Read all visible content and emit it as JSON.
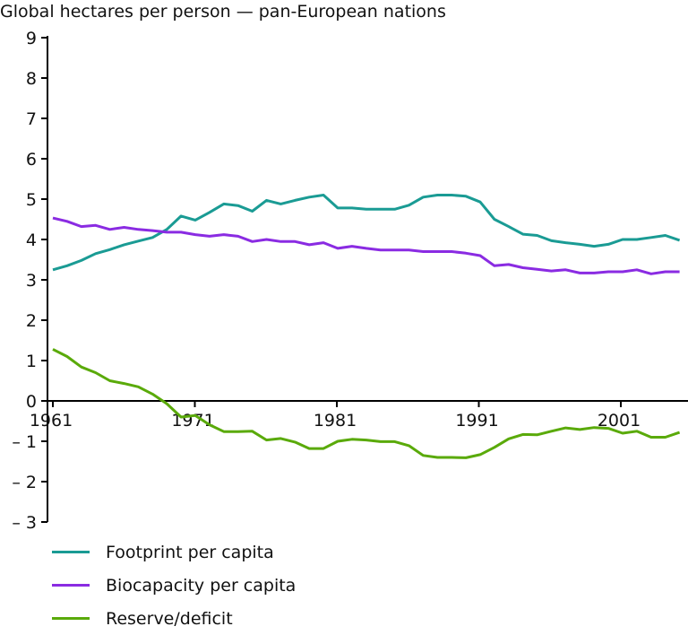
{
  "chart_data": {
    "type": "line",
    "title": "Global hectares per person — pan-European nations",
    "xlabel": "",
    "ylabel": "",
    "ylim": [
      -3,
      9
    ],
    "yticks": [
      "9",
      "8",
      "7",
      "6",
      "5",
      "4",
      "3",
      "2",
      "1",
      "0",
      "– 1",
      "– 2",
      "– 3"
    ],
    "ytick_values": [
      9,
      8,
      7,
      6,
      5,
      4,
      3,
      2,
      1,
      0,
      -1,
      -2,
      -3
    ],
    "xticks": [
      "1961",
      "1971",
      "1981",
      "1991",
      "2001"
    ],
    "xtick_values": [
      1961,
      1971,
      1981,
      1991,
      2001
    ],
    "x": [
      1961,
      1962,
      1963,
      1964,
      1965,
      1966,
      1967,
      1968,
      1969,
      1970,
      1971,
      1972,
      1973,
      1974,
      1975,
      1976,
      1977,
      1978,
      1979,
      1980,
      1981,
      1982,
      1983,
      1984,
      1985,
      1986,
      1987,
      1988,
      1989,
      1990,
      1991,
      1992,
      1993,
      1994,
      1995,
      1996,
      1997,
      1998,
      1999,
      2000,
      2001,
      2002,
      2003,
      2004,
      2005
    ],
    "legend_position": "bottom-left",
    "series": [
      {
        "name": "Footprint per capita",
        "color": "#1a9b94",
        "values": [
          3.25,
          3.35,
          3.48,
          3.65,
          3.75,
          3.87,
          3.96,
          4.05,
          4.25,
          4.58,
          4.48,
          4.67,
          4.88,
          4.84,
          4.7,
          4.97,
          4.88,
          4.97,
          5.05,
          5.1,
          4.78,
          4.78,
          4.75,
          4.75,
          4.75,
          4.85,
          5.05,
          5.1,
          5.1,
          5.07,
          4.93,
          4.5,
          4.32,
          4.13,
          4.1,
          3.97,
          3.92,
          3.88,
          3.83,
          3.88,
          4.0,
          4.0,
          4.05,
          4.1,
          3.98
        ]
      },
      {
        "name": "Biocapacity per capita",
        "color": "#8a2be2",
        "values": [
          4.53,
          4.45,
          4.32,
          4.35,
          4.25,
          4.3,
          4.25,
          4.22,
          4.18,
          4.18,
          4.12,
          4.08,
          4.12,
          4.08,
          3.95,
          4.0,
          3.95,
          3.95,
          3.87,
          3.92,
          3.78,
          3.83,
          3.78,
          3.74,
          3.74,
          3.74,
          3.7,
          3.7,
          3.7,
          3.66,
          3.6,
          3.35,
          3.38,
          3.3,
          3.26,
          3.22,
          3.25,
          3.17,
          3.17,
          3.2,
          3.2,
          3.25,
          3.15,
          3.2,
          3.2
        ]
      },
      {
        "name": "Reserve/deficit",
        "color": "#5aaa0a",
        "values": [
          1.28,
          1.1,
          0.84,
          0.7,
          0.5,
          0.43,
          0.35,
          0.17,
          -0.07,
          -0.4,
          -0.36,
          -0.59,
          -0.76,
          -0.76,
          -0.75,
          -0.97,
          -0.93,
          -1.02,
          -1.18,
          -1.18,
          -1.0,
          -0.95,
          -0.97,
          -1.01,
          -1.01,
          -1.11,
          -1.35,
          -1.4,
          -1.4,
          -1.41,
          -1.33,
          -1.15,
          -0.94,
          -0.83,
          -0.84,
          -0.75,
          -0.67,
          -0.71,
          -0.66,
          -0.68,
          -0.8,
          -0.75,
          -0.9,
          -0.9,
          -0.78
        ]
      }
    ]
  }
}
